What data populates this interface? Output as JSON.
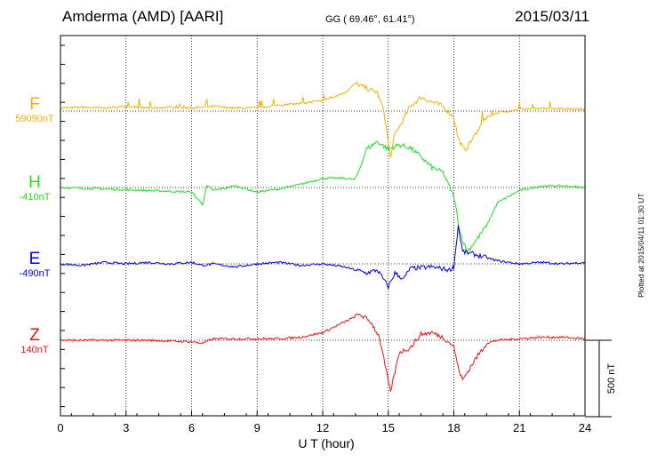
{
  "header": {
    "title": "Amderma (AMD)  [AARI]",
    "coords": "GG ( 69.46°,  61.41°)",
    "date": "2015/03/11"
  },
  "footer": {
    "stamp": "Plotted at 2015/04/11 01:30 UT"
  },
  "colors": {
    "F": "#f0b000",
    "H": "#22dd22",
    "E": "#0000dd",
    "Z": "#ee1111"
  },
  "chart_data": {
    "type": "line",
    "title": "Amderma (AMD)  [AARI]",
    "xlabel": "U T (hour)",
    "xlim": [
      0,
      24
    ],
    "xticks": [
      "0",
      "3",
      "6",
      "9",
      "12",
      "15",
      "18",
      "21",
      "24"
    ],
    "grid": true,
    "scale_bar": {
      "label": "500 nT",
      "value": 500
    },
    "series": [
      {
        "name": "F",
        "baseline_label": "59090nT",
        "baseline": 59090,
        "points": [
          [
            0,
            20
          ],
          [
            1,
            25
          ],
          [
            2,
            20
          ],
          [
            3,
            30
          ],
          [
            4,
            20
          ],
          [
            5,
            25
          ],
          [
            6,
            20
          ],
          [
            7,
            30
          ],
          [
            8,
            20
          ],
          [
            9,
            20
          ],
          [
            10,
            40
          ],
          [
            11,
            50
          ],
          [
            12,
            70
          ],
          [
            13,
            120
          ],
          [
            13.5,
            180
          ],
          [
            14,
            150
          ],
          [
            14.5,
            120
          ],
          [
            14.8,
            0
          ],
          [
            15.1,
            -310
          ],
          [
            15.3,
            -150
          ],
          [
            15.6,
            -80
          ],
          [
            16,
            30
          ],
          [
            16.5,
            90
          ],
          [
            17,
            60
          ],
          [
            17.5,
            30
          ],
          [
            18,
            -40
          ],
          [
            18.2,
            -180
          ],
          [
            18.5,
            -260
          ],
          [
            19,
            -150
          ],
          [
            19.5,
            -40
          ],
          [
            20,
            -10
          ],
          [
            21,
            10
          ],
          [
            22,
            20
          ],
          [
            23,
            15
          ],
          [
            24,
            10
          ]
        ]
      },
      {
        "name": "H",
        "baseline_label": "-410nT",
        "baseline": -410,
        "points": [
          [
            0,
            0
          ],
          [
            2,
            -10
          ],
          [
            4,
            -20
          ],
          [
            6,
            -30
          ],
          [
            6.5,
            -110
          ],
          [
            6.7,
            10
          ],
          [
            7,
            -20
          ],
          [
            8,
            10
          ],
          [
            9,
            -30
          ],
          [
            10,
            -10
          ],
          [
            11,
            20
          ],
          [
            12,
            60
          ],
          [
            13,
            60
          ],
          [
            13.5,
            50
          ],
          [
            14,
            250
          ],
          [
            14.5,
            300
          ],
          [
            15,
            250
          ],
          [
            15.5,
            280
          ],
          [
            16,
            260
          ],
          [
            16.5,
            200
          ],
          [
            17,
            130
          ],
          [
            17.5,
            100
          ],
          [
            18,
            -60
          ],
          [
            18.3,
            -300
          ],
          [
            18.6,
            -420
          ],
          [
            19,
            -350
          ],
          [
            19.5,
            -250
          ],
          [
            20,
            -100
          ],
          [
            21,
            -20
          ],
          [
            22,
            10
          ],
          [
            23,
            10
          ],
          [
            24,
            0
          ]
        ]
      },
      {
        "name": "E",
        "baseline_label": "-490nT",
        "baseline": -490,
        "points": [
          [
            0,
            0
          ],
          [
            1,
            -10
          ],
          [
            2,
            10
          ],
          [
            3,
            0
          ],
          [
            4,
            10
          ],
          [
            5,
            0
          ],
          [
            6,
            10
          ],
          [
            6.5,
            -10
          ],
          [
            7,
            0
          ],
          [
            8,
            -20
          ],
          [
            9,
            0
          ],
          [
            10,
            10
          ],
          [
            11,
            -10
          ],
          [
            12,
            0
          ],
          [
            13,
            -20
          ],
          [
            14,
            -60
          ],
          [
            14.5,
            -40
          ],
          [
            15,
            -150
          ],
          [
            15.3,
            -60
          ],
          [
            15.7,
            -100
          ],
          [
            16,
            -30
          ],
          [
            17,
            -20
          ],
          [
            17.8,
            -40
          ],
          [
            18,
            -20
          ],
          [
            18.2,
            250
          ],
          [
            18.4,
            80
          ],
          [
            19,
            60
          ],
          [
            19.5,
            40
          ],
          [
            20,
            20
          ],
          [
            21,
            0
          ],
          [
            22,
            10
          ],
          [
            23,
            0
          ],
          [
            24,
            10
          ]
        ]
      },
      {
        "name": "Z",
        "baseline_label": "140nT",
        "baseline": 140,
        "points": [
          [
            0,
            0
          ],
          [
            2,
            0
          ],
          [
            4,
            0
          ],
          [
            6,
            -10
          ],
          [
            6.5,
            -20
          ],
          [
            7,
            10
          ],
          [
            8,
            10
          ],
          [
            10,
            10
          ],
          [
            11,
            20
          ],
          [
            12,
            50
          ],
          [
            13,
            120
          ],
          [
            13.7,
            170
          ],
          [
            14.2,
            120
          ],
          [
            14.6,
            20
          ],
          [
            14.9,
            -200
          ],
          [
            15.1,
            -340
          ],
          [
            15.5,
            -80
          ],
          [
            16,
            -50
          ],
          [
            16.5,
            40
          ],
          [
            17,
            50
          ],
          [
            17.5,
            20
          ],
          [
            18,
            -40
          ],
          [
            18.2,
            -180
          ],
          [
            18.4,
            -260
          ],
          [
            19,
            -120
          ],
          [
            19.5,
            -20
          ],
          [
            20,
            0
          ],
          [
            21,
            10
          ],
          [
            22,
            20
          ],
          [
            23,
            20
          ],
          [
            24,
            10
          ]
        ]
      }
    ]
  }
}
